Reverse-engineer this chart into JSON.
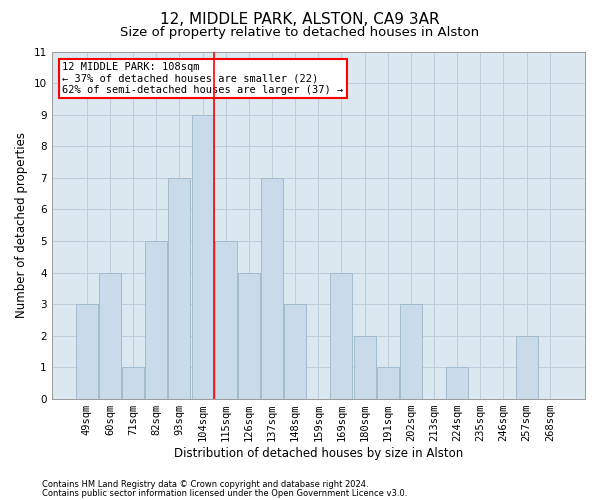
{
  "title_line1": "12, MIDDLE PARK, ALSTON, CA9 3AR",
  "title_line2": "Size of property relative to detached houses in Alston",
  "xlabel": "Distribution of detached houses by size in Alston",
  "ylabel": "Number of detached properties",
  "categories": [
    "49sqm",
    "60sqm",
    "71sqm",
    "82sqm",
    "93sqm",
    "104sqm",
    "115sqm",
    "126sqm",
    "137sqm",
    "148sqm",
    "159sqm",
    "169sqm",
    "180sqm",
    "191sqm",
    "202sqm",
    "213sqm",
    "224sqm",
    "235sqm",
    "246sqm",
    "257sqm",
    "268sqm"
  ],
  "values": [
    3,
    4,
    1,
    5,
    7,
    9,
    5,
    4,
    7,
    3,
    0,
    4,
    2,
    1,
    3,
    0,
    1,
    0,
    0,
    2,
    0
  ],
  "bar_color": "#c9daea",
  "bar_edge_color": "#a0bcce",
  "red_line_x": 5.5,
  "annotation_text": "12 MIDDLE PARK: 108sqm\n← 37% of detached houses are smaller (22)\n62% of semi-detached houses are larger (37) →",
  "annotation_box_color": "white",
  "annotation_box_edge": "red",
  "ylim": [
    0,
    11
  ],
  "yticks": [
    0,
    1,
    2,
    3,
    4,
    5,
    6,
    7,
    8,
    9,
    10,
    11
  ],
  "footer_line1": "Contains HM Land Registry data © Crown copyright and database right 2024.",
  "footer_line2": "Contains public sector information licensed under the Open Government Licence v3.0.",
  "grid_color": "#c0ccd8",
  "background_color": "#dce8f0",
  "title1_fontsize": 11,
  "title2_fontsize": 9.5,
  "axis_label_fontsize": 8.5,
  "tick_fontsize": 7.5,
  "footer_fontsize": 6.0
}
